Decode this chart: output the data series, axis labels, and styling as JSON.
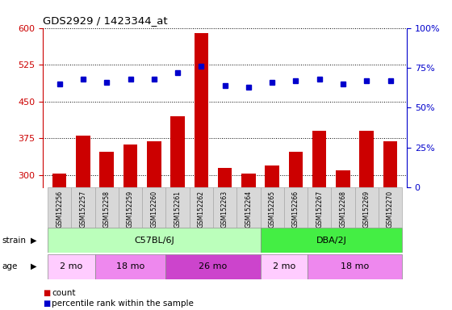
{
  "title": "GDS2929 / 1423344_at",
  "samples": [
    "GSM152256",
    "GSM152257",
    "GSM152258",
    "GSM152259",
    "GSM152260",
    "GSM152261",
    "GSM152262",
    "GSM152263",
    "GSM152264",
    "GSM152265",
    "GSM152266",
    "GSM152267",
    "GSM152268",
    "GSM152269",
    "GSM152270"
  ],
  "counts": [
    303,
    380,
    348,
    362,
    370,
    420,
    590,
    315,
    303,
    320,
    348,
    390,
    310,
    390,
    370
  ],
  "percentile_ranks": [
    65,
    68,
    66,
    68,
    68,
    72,
    76,
    64,
    63,
    66,
    67,
    68,
    65,
    67,
    67
  ],
  "ylim_left": [
    275,
    600
  ],
  "ylim_right": [
    0,
    100
  ],
  "yticks_left": [
    300,
    375,
    450,
    525,
    600
  ],
  "yticks_right": [
    0,
    25,
    50,
    75,
    100
  ],
  "bar_color": "#cc0000",
  "dot_color": "#0000cc",
  "bg_color": "#ffffff",
  "axis_color_left": "#cc0000",
  "axis_color_right": "#0000cc",
  "tick_bg_color": "#d8d8d8",
  "strain_data": [
    {
      "label": "C57BL/6J",
      "start": 0,
      "end": 8,
      "color": "#bbffbb"
    },
    {
      "label": "DBA/2J",
      "start": 9,
      "end": 14,
      "color": "#44ee44"
    }
  ],
  "age_data": [
    {
      "label": "2 mo",
      "start": 0,
      "end": 1,
      "color": "#ffccff"
    },
    {
      "label": "18 mo",
      "start": 2,
      "end": 4,
      "color": "#ee88ee"
    },
    {
      "label": "26 mo",
      "start": 5,
      "end": 8,
      "color": "#cc44cc"
    },
    {
      "label": "2 mo",
      "start": 9,
      "end": 10,
      "color": "#ffccff"
    },
    {
      "label": "18 mo",
      "start": 11,
      "end": 14,
      "color": "#ee88ee"
    }
  ]
}
